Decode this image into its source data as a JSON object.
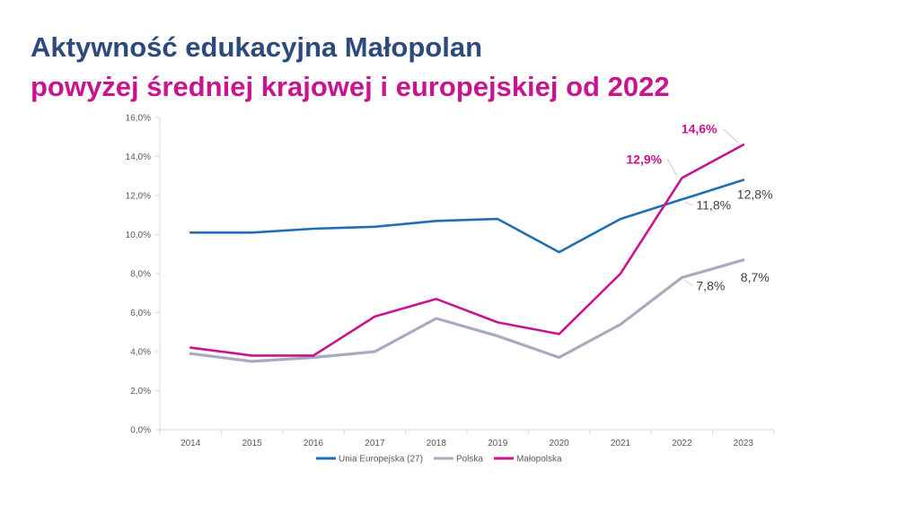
{
  "title_line1": "Aktywność edukacyjna Małopolan",
  "title_line2": "powyżej średniej krajowej i europejskiej od 2022",
  "colors": {
    "title_primary": "#2e4a7d",
    "title_accent": "#c8148f",
    "eu": "#1f6fb2",
    "pl": "#a6acbd",
    "mp": "#c8148f",
    "axis": "#d9d9d9",
    "text": "#595959"
  },
  "chart_data": {
    "type": "line",
    "title": "",
    "xlabel": "",
    "ylabel": "",
    "ylim": [
      0,
      16
    ],
    "y_ticks": [
      "0,0%",
      "2,0%",
      "4,0%",
      "6,0%",
      "8,0%",
      "10,0%",
      "12,0%",
      "14,0%",
      "16,0%"
    ],
    "categories": [
      "2014",
      "2015",
      "2016",
      "2017",
      "2018",
      "2019",
      "2020",
      "2021",
      "2022",
      "2023"
    ],
    "series": [
      {
        "name": "Unia Europejska (27)",
        "color": "#1f6fb2",
        "values": [
          10.1,
          10.1,
          10.3,
          10.4,
          10.7,
          10.8,
          9.1,
          10.8,
          11.8,
          12.8
        ]
      },
      {
        "name": "Polska",
        "color": "#a6acbd",
        "values": [
          3.9,
          3.5,
          3.7,
          4.0,
          5.7,
          4.8,
          3.7,
          5.4,
          7.8,
          8.7
        ]
      },
      {
        "name": "Małopolska",
        "color": "#c8148f",
        "values": [
          4.2,
          3.8,
          3.8,
          5.8,
          6.7,
          5.5,
          4.9,
          8.0,
          12.9,
          14.6
        ]
      }
    ],
    "annotations": [
      {
        "text": "12,9%",
        "series": 2,
        "index": 8,
        "style": "highlight"
      },
      {
        "text": "14,6%",
        "series": 2,
        "index": 9,
        "style": "highlight"
      },
      {
        "text": "11,8%",
        "series": 0,
        "index": 8,
        "style": "normal"
      },
      {
        "text": "12,8%",
        "series": 0,
        "index": 9,
        "style": "normal"
      },
      {
        "text": "7,8%",
        "series": 1,
        "index": 8,
        "style": "normal"
      },
      {
        "text": "8,7%",
        "series": 1,
        "index": 9,
        "style": "normal"
      }
    ],
    "legend_position": "bottom"
  }
}
